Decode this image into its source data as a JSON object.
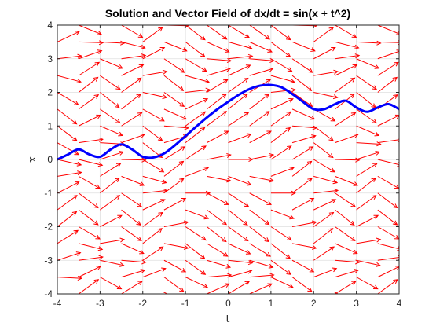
{
  "chart_data": {
    "type": "line",
    "title": "Solution and Vector Field of dx/dt = sin(x + t^2)",
    "xlabel": "t",
    "ylabel": "x",
    "xlim": [
      -4,
      4
    ],
    "ylim": [
      -4,
      4
    ],
    "xticks": [
      "-4",
      "-3",
      "-2",
      "-1",
      "0",
      "1",
      "2",
      "3",
      "4"
    ],
    "yticks": [
      "-4",
      "-3",
      "-2",
      "-1",
      "0",
      "1",
      "2",
      "3",
      "4"
    ],
    "grid": true,
    "vector_field": {
      "equation": "sin(x + t^2)",
      "t_range": [
        -4,
        4
      ],
      "x_range": [
        -4,
        4
      ],
      "grid_count_t": 17,
      "grid_count_x": 17,
      "color": "#ff0000"
    },
    "series": [
      {
        "color": "#0000ff",
        "x": [
          -4.0,
          -3.75,
          -3.5,
          -3.25,
          -3.0,
          -2.75,
          -2.5,
          -2.25,
          -2.0,
          -1.75,
          -1.5,
          -1.25,
          -1.0,
          -0.75,
          -0.5,
          -0.25,
          0.0,
          0.25,
          0.5,
          0.75,
          1.0,
          1.25,
          1.5,
          1.75,
          2.0,
          2.25,
          2.5,
          2.75,
          3.0,
          3.25,
          3.5,
          3.75,
          4.0
        ],
        "y": [
          0.0,
          0.15,
          0.3,
          0.15,
          0.08,
          0.3,
          0.45,
          0.3,
          0.08,
          0.06,
          0.18,
          0.42,
          0.7,
          0.98,
          1.25,
          1.5,
          1.72,
          1.93,
          2.1,
          2.2,
          2.22,
          2.15,
          1.95,
          1.72,
          1.5,
          1.5,
          1.65,
          1.75,
          1.55,
          1.42,
          1.55,
          1.65,
          1.5
        ]
      }
    ]
  }
}
